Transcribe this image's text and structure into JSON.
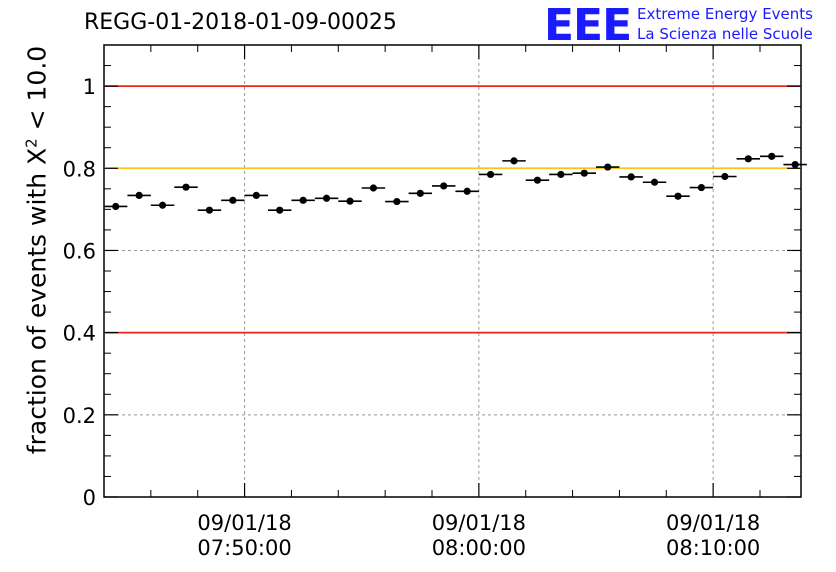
{
  "title": "REGG-01-2018-01-09-00025",
  "logo": {
    "mark": "EEE",
    "line1": "Extreme Energy Events",
    "line2": "La Scienza nelle Scuole"
  },
  "chart_data": {
    "type": "scatter",
    "title": "REGG-01-2018-01-09-00025",
    "ylabel_prefix": "fraction of events with X",
    "ylabel_sup": "2",
    "ylabel_suffix": " < 10.0",
    "xlabel": "",
    "ylim": [
      0,
      1.1
    ],
    "xlim": [
      "2018-01-09 07:44:00",
      "2018-01-09 08:13:45"
    ],
    "yticks": [
      "0",
      "0.2",
      "0.4",
      "0.6",
      "0.8",
      "1"
    ],
    "xticks": [
      {
        "time": "2018-01-09 07:50:00",
        "date": "09/01/18",
        "clock": "07:50:00"
      },
      {
        "time": "2018-01-09 08:00:00",
        "date": "09/01/18",
        "clock": "08:00:00"
      },
      {
        "time": "2018-01-09 08:10:00",
        "date": "09/01/18",
        "clock": "08:10:00"
      }
    ],
    "grid": true,
    "reference_lines": [
      {
        "y": 1.0,
        "color": "#e8261f"
      },
      {
        "y": 0.8,
        "color": "#ffc21a"
      },
      {
        "y": 0.4,
        "color": "#e8261f"
      }
    ],
    "series": [
      {
        "color": "#000000",
        "bin_width_seconds": 60,
        "x": [
          "07:44:30",
          "07:45:30",
          "07:46:30",
          "07:47:30",
          "07:48:30",
          "07:49:30",
          "07:50:30",
          "07:51:30",
          "07:52:30",
          "07:53:30",
          "07:54:30",
          "07:55:30",
          "07:56:30",
          "07:57:30",
          "07:58:30",
          "07:59:30",
          "08:00:30",
          "08:01:30",
          "08:02:30",
          "08:03:30",
          "08:04:30",
          "08:05:30",
          "08:06:30",
          "08:07:30",
          "08:08:30",
          "08:09:30",
          "08:10:30",
          "08:11:30",
          "08:12:30",
          "08:13:30"
        ],
        "y": [
          0.707,
          0.734,
          0.71,
          0.754,
          0.698,
          0.722,
          0.734,
          0.698,
          0.722,
          0.727,
          0.72,
          0.752,
          0.719,
          0.739,
          0.757,
          0.744,
          0.785,
          0.818,
          0.771,
          0.785,
          0.788,
          0.803,
          0.779,
          0.766,
          0.732,
          0.753,
          0.78,
          0.823,
          0.829,
          0.809
        ]
      }
    ]
  }
}
